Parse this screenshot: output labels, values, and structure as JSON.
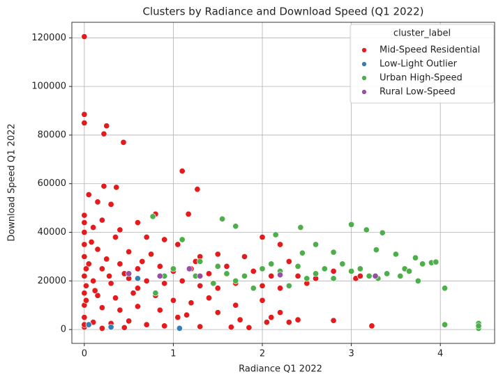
{
  "chart_data": {
    "type": "scatter",
    "title": "Clusters by Radiance and Download Speed (Q1 2022)",
    "x_label": "Radiance Q1 2022",
    "y_label": "Download Speed Q1 2022",
    "xlim": [
      -0.14,
      4.61
    ],
    "ylim": [
      -5700,
      126400
    ],
    "xticks": [
      0,
      1,
      2,
      3,
      4
    ],
    "yticks": [
      0,
      20000,
      40000,
      60000,
      80000,
      100000,
      120000
    ],
    "grid": true,
    "legend_title": "cluster_label",
    "legend": "upper right",
    "series": [
      {
        "name": "Mid-Speed Residential",
        "color": "#e41a1c",
        "x": [
          0,
          0,
          0,
          0.22,
          0.25,
          0.44,
          1.1,
          1.27,
          0.22,
          0.36,
          0.05,
          0.15,
          0.3,
          1.17,
          0.8,
          0,
          0,
          0.2,
          0.1,
          0.4,
          0.6,
          0.35,
          0.7,
          0.9,
          1.05,
          0,
          0.15,
          0.5,
          0.75,
          1.3,
          1.5,
          1.8,
          2.0,
          2.2,
          2.3,
          0,
          0.05,
          0.2,
          0.4,
          0.6,
          0.85,
          1.0,
          1.2,
          1.4,
          1.6,
          1.9,
          2.1,
          2.4,
          2.6,
          2.8,
          3.05,
          3.1,
          0,
          0.1,
          0.3,
          0.5,
          0.7,
          0.9,
          1.1,
          1.3,
          1.5,
          1.7,
          2.0,
          2.2,
          2.5,
          0,
          0.15,
          0.35,
          0.55,
          0.8,
          1.0,
          1.2,
          1.4,
          1.7,
          2.0,
          2.2,
          0,
          0.2,
          0.4,
          0.6,
          0.85,
          1.15,
          1.5,
          1.75,
          2.1,
          2.4,
          2.8,
          0,
          0.1,
          0.3,
          0.5,
          0.7,
          0.9,
          1.05,
          1.3,
          1.65,
          1.85,
          2.05,
          2.3,
          3.23,
          0,
          0.2,
          0.45,
          0,
          0.08,
          0.25,
          0.45,
          0.65,
          1.25,
          0.02,
          0.02,
          0.02,
          0,
          0.12,
          0.28,
          0.6
        ],
        "values": [
          120500,
          88500,
          85000,
          80500,
          83800,
          77000,
          65200,
          57700,
          59000,
          58500,
          55500,
          52500,
          51500,
          47500,
          47500,
          47000,
          44000,
          45000,
          42000,
          41000,
          44000,
          38000,
          38000,
          37000,
          35000,
          35000,
          33000,
          32000,
          31000,
          30000,
          31000,
          30000,
          38000,
          35000,
          28000,
          30000,
          27000,
          25000,
          27000,
          25000,
          26000,
          24000,
          25000,
          23000,
          26000,
          24000,
          22000,
          22000,
          21000,
          24000,
          21000,
          22000,
          22000,
          20000,
          19000,
          21000,
          20000,
          19000,
          20000,
          18000,
          17000,
          19000,
          18000,
          17000,
          19000,
          15000,
          14000,
          13000,
          15000,
          14000,
          12000,
          11000,
          13000,
          10000,
          12000,
          7000,
          10000,
          9000,
          8000,
          9500,
          8000,
          6000,
          7000,
          4000,
          5000,
          4000,
          3700,
          5000,
          3000,
          2500,
          3500,
          2000,
          1500,
          5000,
          1200,
          1000,
          800,
          3000,
          3000,
          1500,
          1000,
          500,
          800,
          40000,
          36000,
          29000,
          23000,
          28000,
          28000,
          18000,
          12000,
          25000,
          2000,
          16000,
          22000,
          17000
        ]
      },
      {
        "name": "Low-Light Outlier",
        "color": "#377eb8",
        "x": [
          1.07,
          0.05,
          0.3,
          0.6
        ],
        "values": [
          500,
          2000,
          1000,
          21000
        ]
      },
      {
        "name": "Urban High-Speed",
        "color": "#4daf4a",
        "x": [
          1.55,
          0.77,
          1.7,
          2.43,
          3.0,
          3.17,
          3.35,
          2.15,
          2.6,
          2.45,
          2.8,
          3.28,
          3.5,
          3.72,
          3.9,
          3.95,
          3.8,
          1.1,
          1.3,
          1.5,
          1.6,
          1.8,
          2.0,
          2.2,
          2.4,
          2.6,
          2.8,
          3.0,
          3.2,
          3.4,
          3.6,
          3.75,
          4.05,
          4.05,
          4.43,
          4.43,
          4.43,
          1.7,
          1.9,
          2.3,
          2.7,
          2.9,
          3.1,
          3.3,
          3.55,
          1.25,
          1.0,
          0.9,
          0.8,
          1.45,
          2.5,
          2.1,
          3.65
        ],
        "values": [
          45500,
          46500,
          42500,
          42000,
          43200,
          41000,
          39800,
          39000,
          35000,
          31500,
          31800,
          32800,
          31000,
          29500,
          27500,
          27800,
          27000,
          37000,
          28000,
          26000,
          23000,
          22000,
          25000,
          24000,
          26000,
          23000,
          21000,
          24000,
          22000,
          23000,
          25000,
          20000,
          17000,
          2000,
          2500,
          500,
          1500,
          20000,
          17000,
          18000,
          25000,
          27000,
          25000,
          21000,
          22000,
          22000,
          25000,
          22000,
          15000,
          19000,
          21000,
          27000,
          24000
        ]
      },
      {
        "name": "Rural Low-Speed",
        "color": "#984ea3",
        "x": [
          1.18,
          1.3,
          3.27,
          0.85,
          2.2,
          0.5
        ],
        "values": [
          25000,
          22000,
          22000,
          22000,
          22500,
          23000
        ]
      }
    ]
  }
}
